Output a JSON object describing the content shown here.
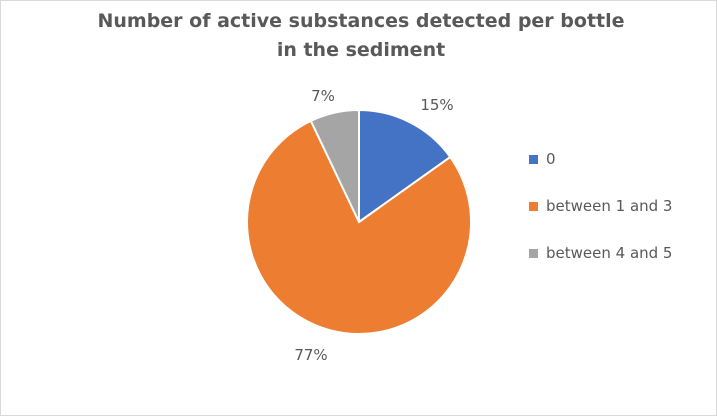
{
  "chart_data": {
    "type": "pie",
    "title": "Number of active substances detected per bottle in the sediment",
    "categories": [
      "0",
      "between 1 and 3",
      "between 4 and 5"
    ],
    "values": [
      15,
      77,
      7
    ],
    "labels": [
      "15%",
      "77%",
      "7%"
    ],
    "colors": [
      "#4472c4",
      "#ed7d31",
      "#a5a5a5"
    ],
    "legend_position": "right"
  }
}
